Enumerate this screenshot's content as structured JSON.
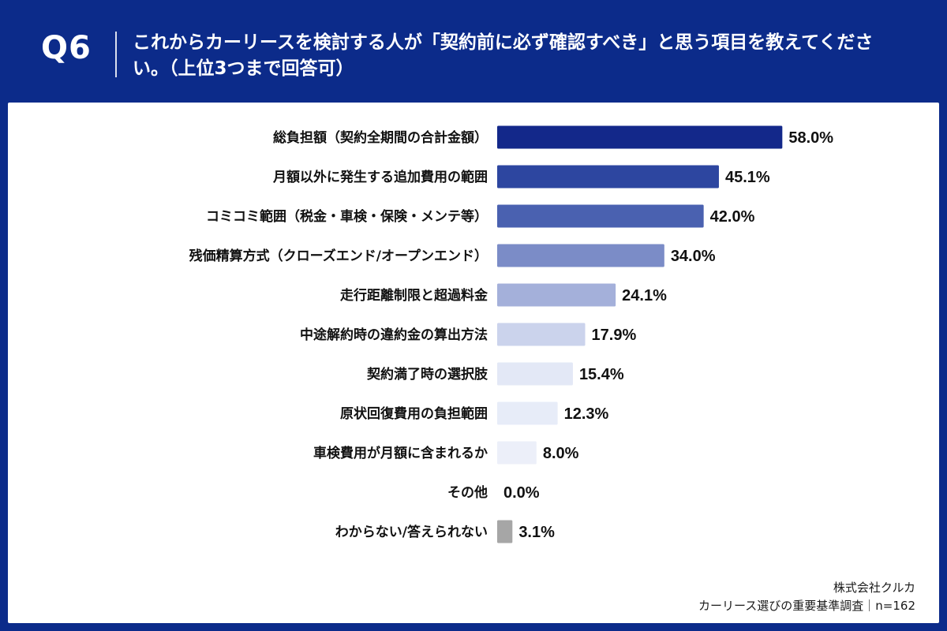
{
  "header": {
    "question_label": "Q6",
    "question_text": "これからカーリースを検討する人が「契約前に必ず確認すべき」と思う項目を教えてください。（上位3つまで回答可）"
  },
  "footer": {
    "company": "株式会社クルカ",
    "survey": "カーリース選びの重要基準調査｜n=162"
  },
  "chart_data": {
    "type": "bar",
    "orientation": "horizontal",
    "categories": [
      "総負担額（契約全期間の合計金額）",
      "月額以外に発生する追加費用の範囲",
      "コミコミ範囲（税金・車検・保険・メンテ等）",
      "残価精算方式（クローズエンド/オープンエンド）",
      "走行距離制限と超過料金",
      "中途解約時の違約金の算出方法",
      "契約満了時の選択肢",
      "原状回復費用の負担範囲",
      "車検費用が月額に含まれるか",
      "その他",
      "わからない/答えられない"
    ],
    "values": [
      58.0,
      45.1,
      42.0,
      34.0,
      24.1,
      17.9,
      15.4,
      12.3,
      8.0,
      0.0,
      3.1
    ],
    "value_labels": [
      "58.0%",
      "45.1%",
      "42.0%",
      "34.0%",
      "24.1%",
      "17.9%",
      "15.4%",
      "12.3%",
      "8.0%",
      "0.0%",
      "3.1%"
    ],
    "colors": [
      "#13288a",
      "#2d46a0",
      "#4a61b0",
      "#7b8cc7",
      "#a4b0da",
      "#cbd3ec",
      "#e3e8f6",
      "#e7ecf8",
      "#eceff9",
      "#eceff9",
      "#a6a6a6"
    ],
    "xlim": [
      0,
      60
    ],
    "grid": false,
    "legend": "none"
  }
}
